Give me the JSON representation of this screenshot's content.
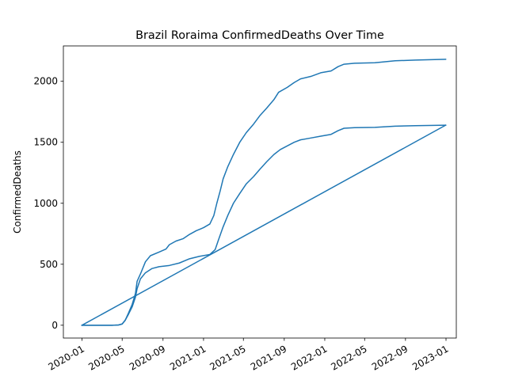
{
  "chart_data": {
    "type": "line",
    "title": "Brazil Roraima ConfirmedDeaths Over Time",
    "xlabel": "",
    "ylabel": "ConfirmedDeaths",
    "x_ticks": [
      "2020-01",
      "2020-05",
      "2020-09",
      "2021-01",
      "2021-05",
      "2021-09",
      "2022-01",
      "2022-05",
      "2022-09",
      "2023-01"
    ],
    "y_ticks": [
      0,
      500,
      1000,
      1500,
      2000
    ],
    "xlim": [
      "2019-11-06",
      "2023-02-01"
    ],
    "ylim": [
      -105,
      2290
    ],
    "grid": false,
    "legend": "none",
    "series": [
      {
        "color": "#1f77b4",
        "points": [
          [
            "2020-01-01",
            0
          ],
          [
            "2020-02-15",
            0
          ],
          [
            "2020-03-31",
            0
          ],
          [
            "2020-04-20",
            2
          ],
          [
            "2020-05-01",
            10
          ],
          [
            "2020-05-10",
            40
          ],
          [
            "2020-05-20",
            90
          ],
          [
            "2020-05-31",
            150
          ],
          [
            "2020-06-10",
            230
          ],
          [
            "2020-06-15",
            300
          ],
          [
            "2020-06-25",
            380
          ],
          [
            "2020-07-10",
            430
          ],
          [
            "2020-07-30",
            465
          ],
          [
            "2020-08-20",
            480
          ],
          [
            "2020-09-20",
            490
          ],
          [
            "2020-10-20",
            510
          ],
          [
            "2020-11-20",
            545
          ],
          [
            "2020-12-20",
            565
          ],
          [
            "2021-01-20",
            580
          ],
          [
            "2021-02-05",
            620
          ],
          [
            "2021-02-15",
            700
          ],
          [
            "2021-02-28",
            800
          ],
          [
            "2021-03-15",
            900
          ],
          [
            "2021-04-01",
            1000
          ],
          [
            "2021-04-20",
            1080
          ],
          [
            "2021-05-10",
            1160
          ],
          [
            "2021-06-01",
            1220
          ],
          [
            "2021-06-20",
            1280
          ],
          [
            "2021-07-10",
            1340
          ],
          [
            "2021-08-01",
            1400
          ],
          [
            "2021-08-20",
            1440
          ],
          [
            "2021-09-10",
            1470
          ],
          [
            "2021-10-01",
            1500
          ],
          [
            "2021-10-20",
            1520
          ],
          [
            "2021-11-20",
            1535
          ],
          [
            "2021-12-20",
            1550
          ],
          [
            "2022-01-20",
            1565
          ],
          [
            "2022-02-10",
            1595
          ],
          [
            "2022-02-28",
            1615
          ],
          [
            "2022-04-01",
            1620
          ],
          [
            "2022-06-01",
            1622
          ],
          [
            "2022-08-01",
            1632
          ],
          [
            "2022-10-01",
            1636
          ],
          [
            "2022-12-31",
            1640
          ]
        ]
      },
      {
        "color": "#1f77b4",
        "points": [
          [
            "2022-12-31",
            1640
          ],
          [
            "2020-01-01",
            0
          ]
        ]
      },
      {
        "color": "#1f77b4",
        "points": [
          [
            "2020-01-01",
            0
          ],
          [
            "2020-03-31",
            0
          ],
          [
            "2020-04-20",
            2
          ],
          [
            "2020-05-01",
            10
          ],
          [
            "2020-05-10",
            40
          ],
          [
            "2020-05-20",
            100
          ],
          [
            "2020-05-31",
            170
          ],
          [
            "2020-06-10",
            260
          ],
          [
            "2020-06-15",
            360
          ],
          [
            "2020-06-25",
            420
          ],
          [
            "2020-07-10",
            520
          ],
          [
            "2020-07-25",
            570
          ],
          [
            "2020-08-20",
            600
          ],
          [
            "2020-09-10",
            625
          ],
          [
            "2020-09-20",
            660
          ],
          [
            "2020-10-10",
            690
          ],
          [
            "2020-11-01",
            710
          ],
          [
            "2020-11-20",
            745
          ],
          [
            "2020-12-10",
            775
          ],
          [
            "2021-01-01",
            800
          ],
          [
            "2021-01-20",
            830
          ],
          [
            "2021-02-01",
            900
          ],
          [
            "2021-02-10",
            1000
          ],
          [
            "2021-02-20",
            1100
          ],
          [
            "2021-03-01",
            1200
          ],
          [
            "2021-03-15",
            1300
          ],
          [
            "2021-04-01",
            1400
          ],
          [
            "2021-04-20",
            1500
          ],
          [
            "2021-05-10",
            1580
          ],
          [
            "2021-06-01",
            1650
          ],
          [
            "2021-06-20",
            1720
          ],
          [
            "2021-07-10",
            1780
          ],
          [
            "2021-08-01",
            1850
          ],
          [
            "2021-08-15",
            1910
          ],
          [
            "2021-09-10",
            1950
          ],
          [
            "2021-10-01",
            1990
          ],
          [
            "2021-10-20",
            2020
          ],
          [
            "2021-11-20",
            2040
          ],
          [
            "2021-12-20",
            2070
          ],
          [
            "2022-01-20",
            2085
          ],
          [
            "2022-02-10",
            2120
          ],
          [
            "2022-02-28",
            2140
          ],
          [
            "2022-04-01",
            2148
          ],
          [
            "2022-06-01",
            2152
          ],
          [
            "2022-08-01",
            2168
          ],
          [
            "2022-10-01",
            2174
          ],
          [
            "2022-12-31",
            2180
          ]
        ]
      }
    ]
  }
}
